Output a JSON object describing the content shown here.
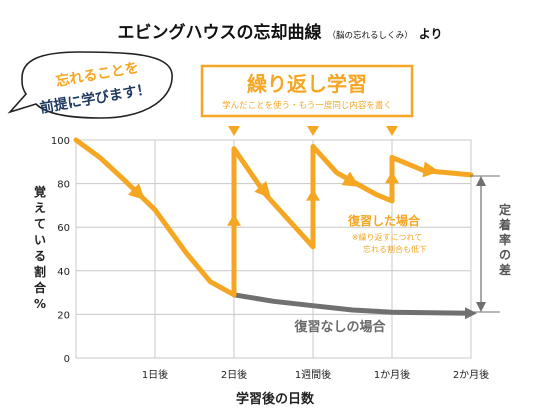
{
  "title": {
    "main": "エビングハウスの忘却曲線",
    "note": "（脳の忘れるしくみ）",
    "suffix": "より"
  },
  "callout": {
    "line1": "忘れることを",
    "line2": "前提に学びます！"
  },
  "review_box": {
    "title": "繰り返し学習",
    "subtitle": "学んだことを使う・もう一度同じ内容を書く"
  },
  "labels": {
    "with_review": "復習した場合",
    "with_review_note1": "※繰り返すにつれて",
    "with_review_note2": "忘れる割合も低下",
    "without_review": "復習なしの場合",
    "retention_diff": "定着率の差"
  },
  "colors": {
    "orange": "#f5a623",
    "gray_curve": "#707070",
    "grid": "#c8c8c8",
    "callout_text": "#f5a623",
    "review_title": "#f5a623"
  },
  "chart_data": {
    "type": "line",
    "title": "エビングハウスの忘却曲線",
    "xlabel": "学習後の日数",
    "ylabel": "覚えている割合%",
    "ylim": [
      0,
      100
    ],
    "yticks": [
      "0",
      "20",
      "40",
      "60",
      "80",
      "100"
    ],
    "xticks": [
      "1日後",
      "2日後",
      "1週間後",
      "1か月後",
      "2か月後"
    ],
    "grid": true,
    "series": [
      {
        "name": "復習なしの場合",
        "points": [
          [
            0,
            100
          ],
          [
            0.3,
            92
          ],
          [
            0.6,
            82
          ],
          [
            1.0,
            68
          ],
          [
            1.4,
            48
          ],
          [
            1.7,
            35
          ],
          [
            2.0,
            29
          ],
          [
            2.5,
            26
          ],
          [
            3.0,
            24
          ],
          [
            3.5,
            22
          ],
          [
            4.0,
            21
          ],
          [
            5.0,
            20.5
          ]
        ]
      },
      {
        "name": "復習した場合",
        "points": [
          [
            0,
            100
          ],
          [
            0.3,
            92
          ],
          [
            0.6,
            82
          ],
          [
            1.0,
            68
          ],
          [
            1.4,
            48
          ],
          [
            1.7,
            35
          ],
          [
            2.0,
            29
          ],
          [
            2.0,
            96
          ],
          [
            2.4,
            75
          ],
          [
            3.0,
            51
          ],
          [
            3.0,
            97
          ],
          [
            3.3,
            85
          ],
          [
            3.8,
            75
          ],
          [
            4.0,
            72
          ],
          [
            4.0,
            92
          ],
          [
            4.4,
            86
          ],
          [
            5.0,
            84
          ]
        ]
      }
    ],
    "review_points": [
      2,
      3,
      4
    ]
  }
}
